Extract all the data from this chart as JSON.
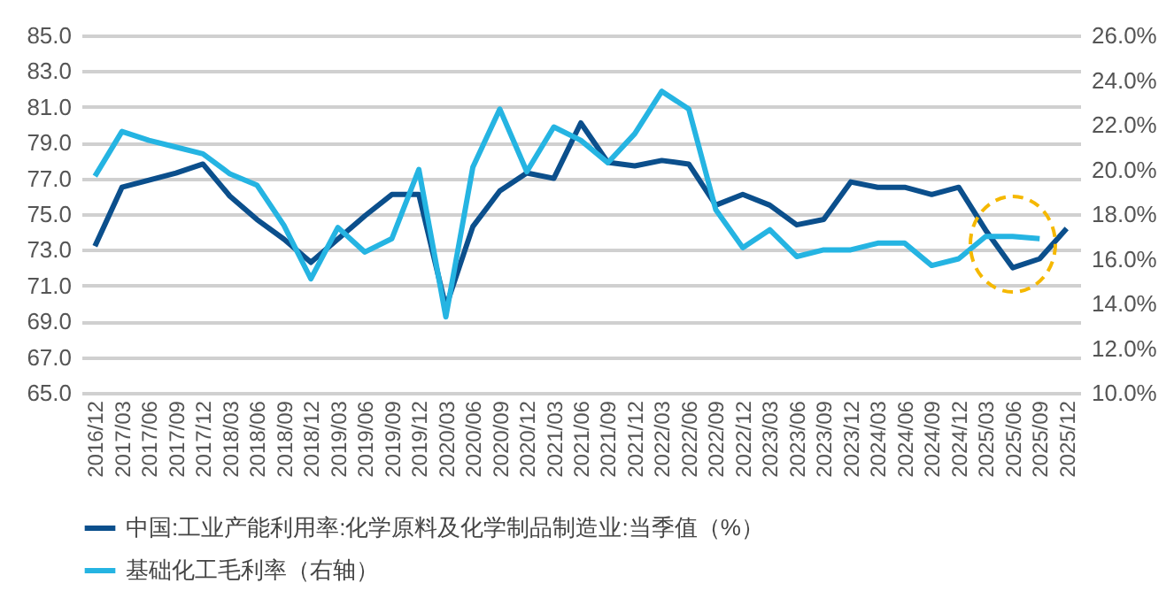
{
  "chart_data": {
    "type": "line",
    "categories": [
      "2016/12",
      "2017/03",
      "2017/06",
      "2017/09",
      "2017/12",
      "2018/03",
      "2018/06",
      "2018/09",
      "2018/12",
      "2019/03",
      "2019/06",
      "2019/09",
      "2019/12",
      "2020/03",
      "2020/06",
      "2020/09",
      "2020/12",
      "2021/03",
      "2021/06",
      "2021/09",
      "2021/12",
      "2022/03",
      "2022/06",
      "2022/09",
      "2022/12",
      "2023/03",
      "2023/06",
      "2023/09",
      "2023/12",
      "2024/03",
      "2024/06",
      "2024/09",
      "2024/12",
      "2025/03",
      "2025/06",
      "2025/09",
      "2025/12"
    ],
    "series": [
      {
        "name": "中国:工业产能利用率:化学原料及化学制品制造业:当季值（%）",
        "color": "#0b4f8c",
        "values": [
          73.2,
          76.5,
          76.9,
          77.3,
          77.8,
          76.0,
          74.7,
          73.6,
          72.3,
          73.6,
          74.9,
          76.1,
          76.1,
          69.8,
          74.3,
          76.3,
          77.3,
          77.0,
          80.1,
          77.9,
          77.7,
          78.0,
          77.8,
          75.5,
          76.1,
          75.5,
          74.4,
          74.7,
          76.8,
          76.5,
          76.5,
          76.1,
          76.5,
          74.1,
          72.0,
          72.5,
          74.2
        ]
      },
      {
        "name": "基础化工毛利率（右轴）",
        "color": "#25b4e2",
        "axis": "y2",
        "values": [
          19.7,
          21.7,
          21.3,
          21.0,
          20.7,
          19.8,
          19.3,
          17.5,
          15.1,
          17.4,
          16.3,
          16.9,
          20.0,
          13.4,
          20.1,
          22.7,
          19.9,
          21.9,
          21.3,
          20.3,
          21.6,
          23.5,
          22.7,
          18.2,
          16.5,
          17.3,
          16.1,
          16.4,
          16.4,
          16.7,
          16.7,
          15.7,
          16.0,
          17.0,
          17.0,
          16.9,
          null
        ]
      }
    ],
    "ylim": [
      65,
      85
    ],
    "yticks": [
      {
        "value": 65,
        "label": "65.0"
      },
      {
        "value": 67,
        "label": "67.0"
      },
      {
        "value": 69,
        "label": "69.0"
      },
      {
        "value": 71,
        "label": "71.0"
      },
      {
        "value": 73,
        "label": "73.0"
      },
      {
        "value": 75,
        "label": "75.0"
      },
      {
        "value": 77,
        "label": "77.0"
      },
      {
        "value": 79,
        "label": "79.0"
      },
      {
        "value": 81,
        "label": "81.0"
      },
      {
        "value": 83,
        "label": "83.0"
      },
      {
        "value": 85,
        "label": "85.0"
      }
    ],
    "y2lim": [
      10,
      26
    ],
    "y2ticks": [
      {
        "value": 10,
        "label": "10.0%"
      },
      {
        "value": 12,
        "label": "12.0%"
      },
      {
        "value": 14,
        "label": "14.0%"
      },
      {
        "value": 16,
        "label": "16.0%"
      },
      {
        "value": 18,
        "label": "18.0%"
      },
      {
        "value": 20,
        "label": "20.0%"
      },
      {
        "value": 22,
        "label": "22.0%"
      },
      {
        "value": 24,
        "label": "24.0%"
      },
      {
        "value": 26,
        "label": "26.0%"
      }
    ],
    "grid": "y",
    "legend": "bottom",
    "marker": "none",
    "line_style": "solid"
  }
}
